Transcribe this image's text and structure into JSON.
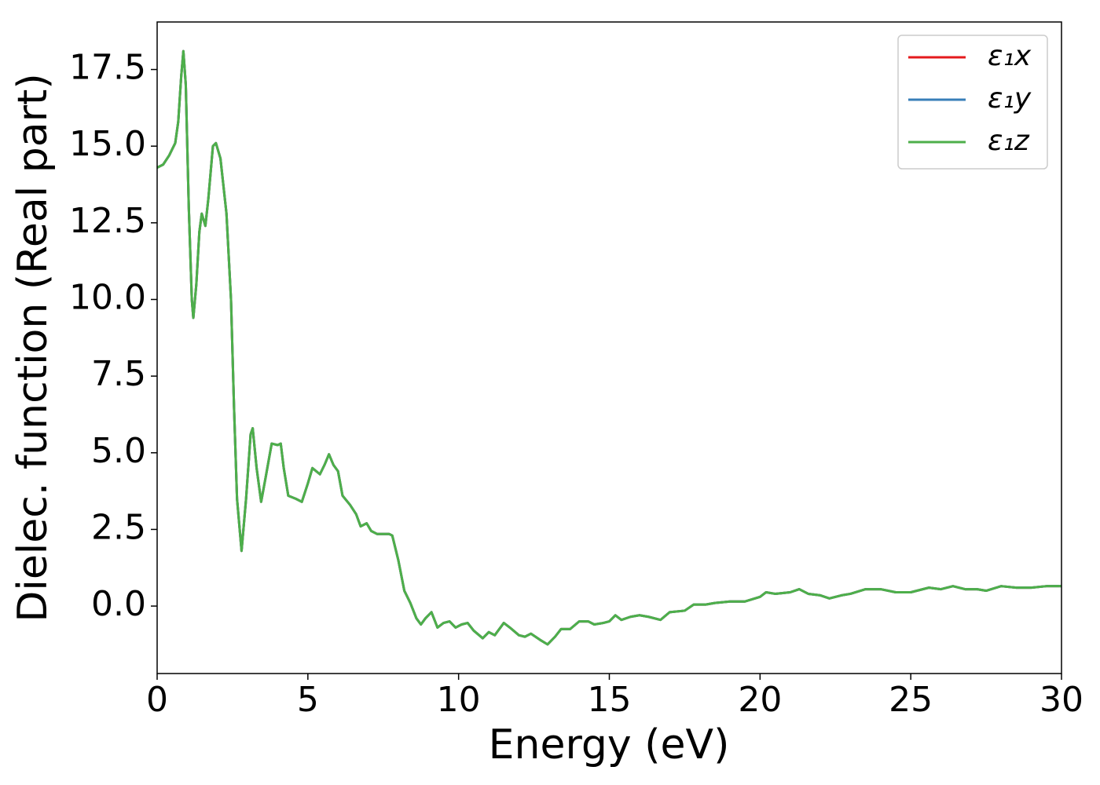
{
  "chart_data": {
    "type": "line",
    "xlabel": "Energy (eV)",
    "ylabel": "Dielec. function (Real part)",
    "x": [
      0,
      0.2,
      0.4,
      0.5,
      0.6,
      0.7,
      0.8,
      0.87,
      0.95,
      1.05,
      1.15,
      1.2,
      1.3,
      1.4,
      1.48,
      1.6,
      1.7,
      1.85,
      1.95,
      2.1,
      2.3,
      2.45,
      2.55,
      2.65,
      2.8,
      2.95,
      3.1,
      3.17,
      3.3,
      3.45,
      3.6,
      3.8,
      4.0,
      4.1,
      4.2,
      4.35,
      4.6,
      4.8,
      5.0,
      5.15,
      5.4,
      5.55,
      5.7,
      5.85,
      6.0,
      6.15,
      6.4,
      6.6,
      6.75,
      6.95,
      7.1,
      7.3,
      7.5,
      7.7,
      7.8,
      8.0,
      8.2,
      8.4,
      8.6,
      8.75,
      8.9,
      9.1,
      9.3,
      9.5,
      9.7,
      9.9,
      10.1,
      10.3,
      10.5,
      10.8,
      11.0,
      11.2,
      11.5,
      11.7,
      12.0,
      12.2,
      12.4,
      12.7,
      12.95,
      13.2,
      13.4,
      13.7,
      14.0,
      14.3,
      14.5,
      14.8,
      15.0,
      15.2,
      15.4,
      15.7,
      16.0,
      16.3,
      16.7,
      17.0,
      17.5,
      17.8,
      18.2,
      18.5,
      19.0,
      19.5,
      20.0,
      20.2,
      20.5,
      21.0,
      21.3,
      21.6,
      22.0,
      22.3,
      22.7,
      23.0,
      23.5,
      24.0,
      24.5,
      25.0,
      25.6,
      26.0,
      26.4,
      26.8,
      27.2,
      27.5,
      28.0,
      28.5,
      29.0,
      29.5,
      30.0
    ],
    "series": [
      {
        "name": "ε₁x",
        "color": "#e41a1c",
        "values": [
          14.3,
          14.4,
          14.7,
          14.9,
          15.1,
          15.8,
          17.3,
          18.1,
          17.0,
          13.0,
          10.0,
          9.4,
          10.5,
          12.2,
          12.8,
          12.4,
          13.3,
          15.0,
          15.1,
          14.6,
          12.8,
          10.0,
          6.5,
          3.5,
          1.8,
          3.5,
          5.6,
          5.8,
          4.5,
          3.4,
          4.2,
          5.3,
          5.25,
          5.3,
          4.5,
          3.6,
          3.5,
          3.4,
          4.0,
          4.5,
          4.3,
          4.6,
          4.95,
          4.6,
          4.4,
          3.6,
          3.3,
          3.0,
          2.6,
          2.7,
          2.45,
          2.35,
          2.35,
          2.35,
          2.3,
          1.5,
          0.5,
          0.1,
          -0.4,
          -0.6,
          -0.4,
          -0.2,
          -0.7,
          -0.55,
          -0.5,
          -0.7,
          -0.6,
          -0.55,
          -0.8,
          -1.05,
          -0.85,
          -0.95,
          -0.55,
          -0.7,
          -0.95,
          -1.0,
          -0.9,
          -1.1,
          -1.25,
          -1.0,
          -0.75,
          -0.75,
          -0.5,
          -0.5,
          -0.6,
          -0.55,
          -0.5,
          -0.3,
          -0.45,
          -0.35,
          -0.3,
          -0.35,
          -0.45,
          -0.2,
          -0.15,
          0.05,
          0.05,
          0.1,
          0.15,
          0.15,
          0.3,
          0.45,
          0.4,
          0.45,
          0.55,
          0.4,
          0.35,
          0.25,
          0.35,
          0.4,
          0.55,
          0.55,
          0.45,
          0.45,
          0.6,
          0.55,
          0.65,
          0.55,
          0.55,
          0.5,
          0.65,
          0.6,
          0.6,
          0.65,
          0.65
        ]
      },
      {
        "name": "ε₁y",
        "color": "#377eb8",
        "values": [
          14.3,
          14.4,
          14.7,
          14.9,
          15.1,
          15.8,
          17.3,
          18.1,
          17.0,
          13.0,
          10.0,
          9.4,
          10.5,
          12.2,
          12.8,
          12.4,
          13.3,
          15.0,
          15.1,
          14.6,
          12.8,
          10.0,
          6.5,
          3.5,
          1.8,
          3.5,
          5.6,
          5.8,
          4.5,
          3.4,
          4.2,
          5.3,
          5.25,
          5.3,
          4.5,
          3.6,
          3.5,
          3.4,
          4.0,
          4.5,
          4.3,
          4.6,
          4.95,
          4.6,
          4.4,
          3.6,
          3.3,
          3.0,
          2.6,
          2.7,
          2.45,
          2.35,
          2.35,
          2.35,
          2.3,
          1.5,
          0.5,
          0.1,
          -0.4,
          -0.6,
          -0.4,
          -0.2,
          -0.7,
          -0.55,
          -0.5,
          -0.7,
          -0.6,
          -0.55,
          -0.8,
          -1.05,
          -0.85,
          -0.95,
          -0.55,
          -0.7,
          -0.95,
          -1.0,
          -0.9,
          -1.1,
          -1.25,
          -1.0,
          -0.75,
          -0.75,
          -0.5,
          -0.5,
          -0.6,
          -0.55,
          -0.5,
          -0.3,
          -0.45,
          -0.35,
          -0.3,
          -0.35,
          -0.45,
          -0.2,
          -0.15,
          0.05,
          0.05,
          0.1,
          0.15,
          0.15,
          0.3,
          0.45,
          0.4,
          0.45,
          0.55,
          0.4,
          0.35,
          0.25,
          0.35,
          0.4,
          0.55,
          0.55,
          0.45,
          0.45,
          0.6,
          0.55,
          0.65,
          0.55,
          0.55,
          0.5,
          0.65,
          0.6,
          0.6,
          0.65,
          0.65
        ]
      },
      {
        "name": "ε₁z",
        "color": "#4daf4a",
        "values": [
          14.3,
          14.4,
          14.7,
          14.9,
          15.1,
          15.8,
          17.3,
          18.1,
          17.0,
          13.0,
          10.0,
          9.4,
          10.5,
          12.2,
          12.8,
          12.4,
          13.3,
          15.0,
          15.1,
          14.6,
          12.8,
          10.0,
          6.5,
          3.5,
          1.8,
          3.5,
          5.6,
          5.8,
          4.5,
          3.4,
          4.2,
          5.3,
          5.25,
          5.3,
          4.5,
          3.6,
          3.5,
          3.4,
          4.0,
          4.5,
          4.3,
          4.6,
          4.95,
          4.6,
          4.4,
          3.6,
          3.3,
          3.0,
          2.6,
          2.7,
          2.45,
          2.35,
          2.35,
          2.35,
          2.3,
          1.5,
          0.5,
          0.1,
          -0.4,
          -0.6,
          -0.4,
          -0.2,
          -0.7,
          -0.55,
          -0.5,
          -0.7,
          -0.6,
          -0.55,
          -0.8,
          -1.05,
          -0.85,
          -0.95,
          -0.55,
          -0.7,
          -0.95,
          -1.0,
          -0.9,
          -1.1,
          -1.25,
          -1.0,
          -0.75,
          -0.75,
          -0.5,
          -0.5,
          -0.6,
          -0.55,
          -0.5,
          -0.3,
          -0.45,
          -0.35,
          -0.3,
          -0.35,
          -0.45,
          -0.2,
          -0.15,
          0.05,
          0.05,
          0.1,
          0.15,
          0.15,
          0.3,
          0.45,
          0.4,
          0.45,
          0.55,
          0.4,
          0.35,
          0.25,
          0.35,
          0.4,
          0.55,
          0.55,
          0.45,
          0.45,
          0.6,
          0.55,
          0.65,
          0.55,
          0.55,
          0.5,
          0.65,
          0.6,
          0.6,
          0.65,
          0.65
        ]
      }
    ],
    "xlim": [
      0,
      30
    ],
    "xticks": [
      0,
      5,
      10,
      15,
      20,
      25,
      30
    ],
    "ylim": [
      -2.2,
      19.05
    ],
    "yticks": [
      {
        "value": 0,
        "label": "0.0"
      },
      2.5,
      {
        "value": 5,
        "label": "5.0"
      },
      7.5,
      {
        "value": 10,
        "label": "10.0"
      },
      12.5,
      {
        "value": 15,
        "label": "15.0"
      },
      17.5
    ],
    "legend": "upper right",
    "grid": false
  }
}
